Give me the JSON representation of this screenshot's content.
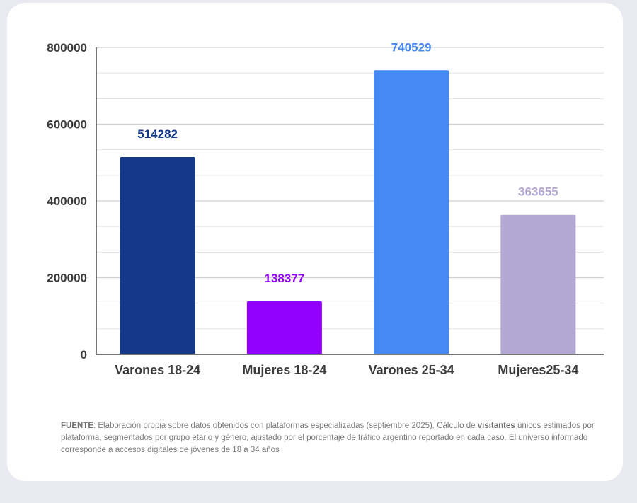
{
  "chart_data": {
    "type": "bar",
    "categories": [
      "Varones 18-24",
      "Mujeres 18-24",
      "Varones 25-34",
      "Mujeres25-34"
    ],
    "values": [
      514282,
      138377,
      740529,
      363655
    ],
    "data_labels": [
      "514282",
      "138377",
      "740529",
      "363655"
    ],
    "colors": [
      "#14398a",
      "#9200ff",
      "#4589f5",
      "#b3a7d3"
    ],
    "label_colors": [
      "#14398a",
      "#9200ff",
      "#4589f5",
      "#b3a7d3"
    ],
    "yticks": [
      0,
      200000,
      400000,
      600000,
      800000
    ],
    "ytick_labels": [
      "0",
      "200000",
      "400000",
      "600000",
      "800000"
    ],
    "ylim": [
      0,
      800000
    ],
    "grid": true,
    "title": "",
    "xlabel": "",
    "ylabel": ""
  },
  "footer": {
    "source_label": "FUENTE",
    "source_text": ": Elaboración propia sobre datos obtenidos con plataformas especializadas (septiembre 2025). Cálculo de ",
    "bold_word": "visitantes",
    "rest_text": " únicos estimados por plataforma, segmentados por grupo etario y género, ajustado por el porcentaje de tráfico argentino reportado en cada caso. El universo informado corresponde a accesos digitales de jóvenes de 18 a 34 años"
  }
}
